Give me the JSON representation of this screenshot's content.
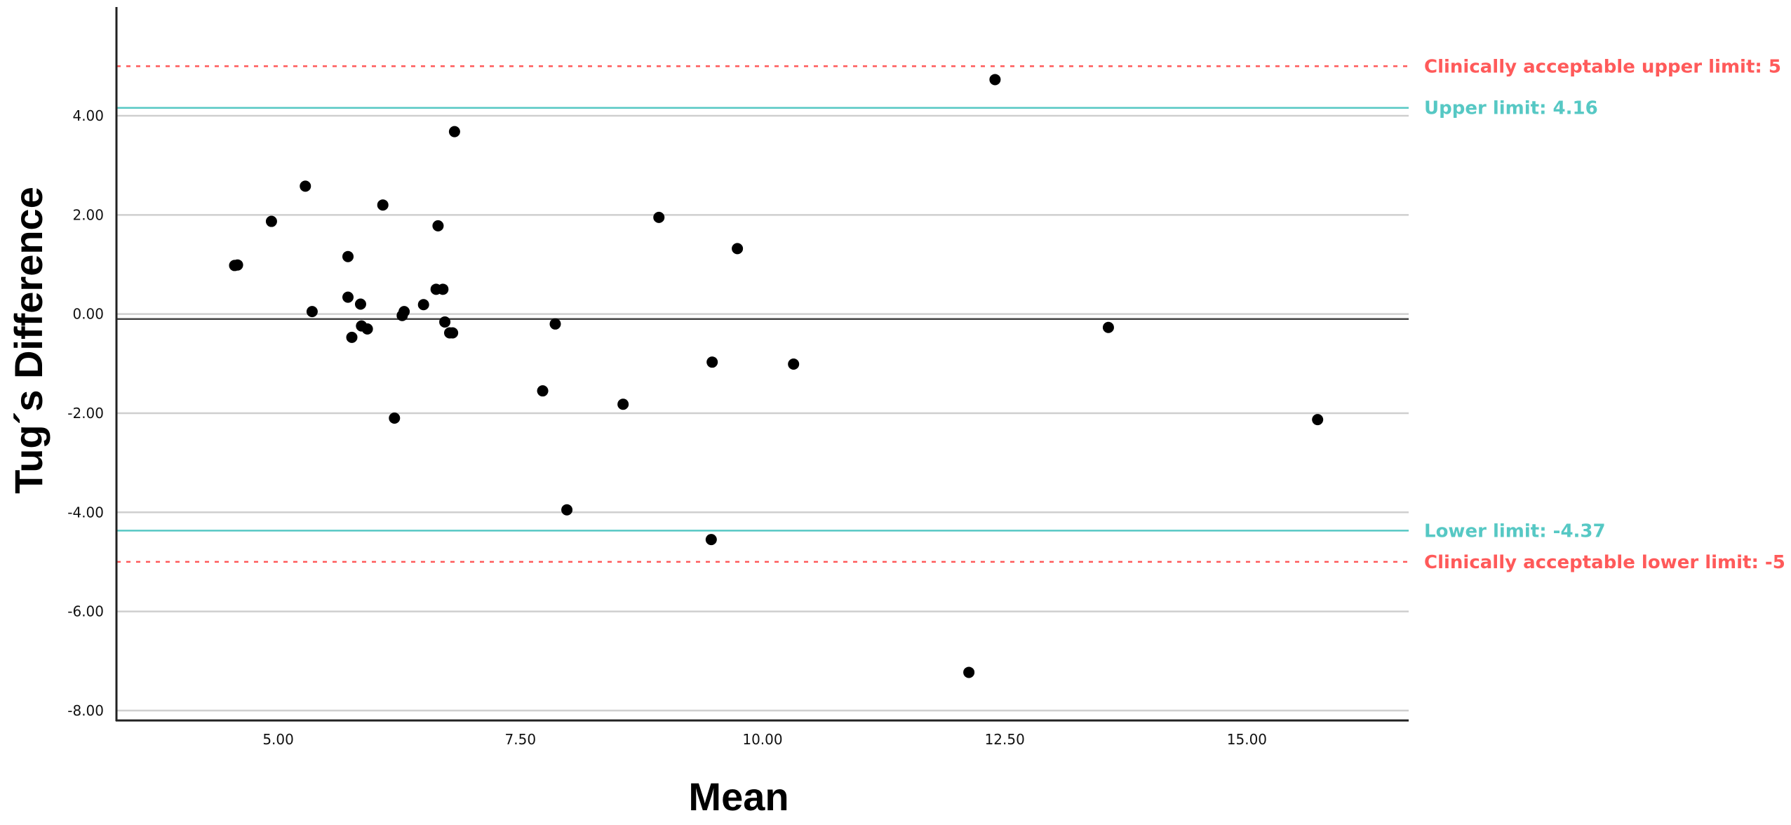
{
  "chart_data": {
    "type": "scatter",
    "title": "",
    "xlabel": "Mean",
    "ylabel": "Tug´s Difference",
    "xlim": [
      3.33,
      16.67
    ],
    "ylim": [
      -8.2,
      5.6
    ],
    "x_ticks": [
      5.0,
      7.5,
      10.0,
      12.5,
      15.0
    ],
    "x_tick_labels": [
      "5.00",
      "7.50",
      "10.00",
      "12.50",
      "15.00"
    ],
    "y_ticks": [
      4.0,
      2.0,
      0.0,
      -2.0,
      -4.0,
      -6.0,
      -8.0
    ],
    "y_tick_labels": [
      "4.00",
      "2.00",
      "0.00",
      "-2.00",
      "-4.00",
      "-6.00",
      "-8.00"
    ],
    "grid": "horizontal",
    "mean_difference": -0.1,
    "reference_lines": [
      {
        "value": 5,
        "label": "Clinically acceptable upper limit: 5",
        "style": "dotted",
        "color": "#ff5a5a"
      },
      {
        "value": 4.16,
        "label": "Upper limit: 4.16",
        "style": "solid",
        "color": "#56c8c4"
      },
      {
        "value": -4.37,
        "label": "Lower limit: -4.37",
        "style": "solid",
        "color": "#56c8c4"
      },
      {
        "value": -5,
        "label": "Clinically acceptable lower limit: -5",
        "style": "dotted",
        "color": "#ff5a5a"
      }
    ],
    "points": [
      {
        "x": 4.55,
        "y": 0.98
      },
      {
        "x": 4.58,
        "y": 0.99
      },
      {
        "x": 4.93,
        "y": 1.87
      },
      {
        "x": 5.28,
        "y": 2.58
      },
      {
        "x": 5.35,
        "y": 0.05
      },
      {
        "x": 5.72,
        "y": 1.16
      },
      {
        "x": 5.72,
        "y": 0.34
      },
      {
        "x": 5.76,
        "y": -0.47
      },
      {
        "x": 5.85,
        "y": 0.2
      },
      {
        "x": 5.86,
        "y": -0.24
      },
      {
        "x": 5.92,
        "y": -0.3
      },
      {
        "x": 6.08,
        "y": 2.2
      },
      {
        "x": 6.2,
        "y": -2.1
      },
      {
        "x": 6.28,
        "y": -0.03
      },
      {
        "x": 6.3,
        "y": 0.05
      },
      {
        "x": 6.5,
        "y": 0.19
      },
      {
        "x": 6.63,
        "y": 0.5
      },
      {
        "x": 6.65,
        "y": 1.78
      },
      {
        "x": 6.7,
        "y": 0.5
      },
      {
        "x": 6.72,
        "y": -0.16
      },
      {
        "x": 6.77,
        "y": -0.38
      },
      {
        "x": 6.8,
        "y": -0.38
      },
      {
        "x": 6.82,
        "y": 3.68
      },
      {
        "x": 7.73,
        "y": -1.55
      },
      {
        "x": 7.86,
        "y": -0.2
      },
      {
        "x": 7.98,
        "y": -3.95
      },
      {
        "x": 8.56,
        "y": -1.82
      },
      {
        "x": 8.93,
        "y": 1.95
      },
      {
        "x": 9.47,
        "y": -4.55
      },
      {
        "x": 9.48,
        "y": -0.97
      },
      {
        "x": 9.74,
        "y": 1.32
      },
      {
        "x": 10.32,
        "y": -1.01
      },
      {
        "x": 12.13,
        "y": -7.23
      },
      {
        "x": 12.4,
        "y": 4.73
      },
      {
        "x": 13.57,
        "y": -0.27
      },
      {
        "x": 15.73,
        "y": -2.13
      }
    ]
  },
  "colors": {
    "grid": "#cfcfcf",
    "axis": "#222222",
    "mean_line": "#444444",
    "point": "#000000",
    "limit": "#56c8c4",
    "clinical": "#ff5a5a"
  }
}
